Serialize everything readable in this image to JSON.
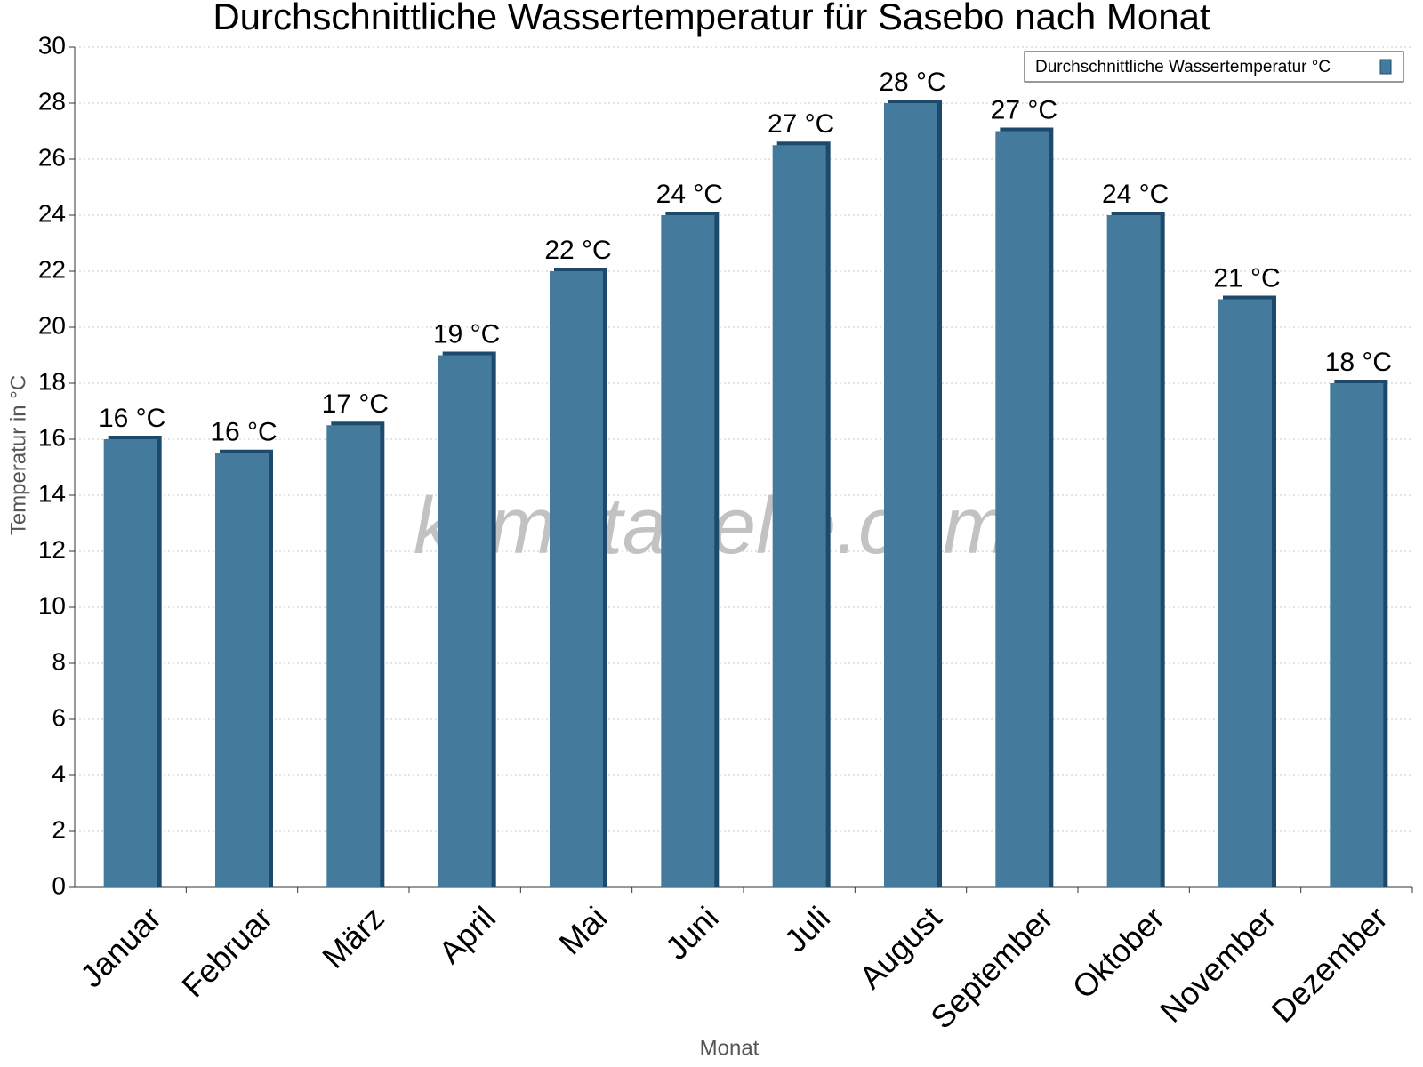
{
  "chart_data": {
    "type": "bar",
    "title": "Durchschnittliche Wassertemperatur für Sasebo nach Monat",
    "watermark": "klimatabelle.com",
    "x_label": "Monat",
    "y_label": "Temperatur in °C",
    "categories": [
      "Januar",
      "Februar",
      "März",
      "April",
      "Mai",
      "Juni",
      "Juli",
      "August",
      "September",
      "Oktober",
      "November",
      "Dezember"
    ],
    "series": [
      {
        "name": "Durchschnittliche Wassertemperatur °C",
        "color": "#447a9c",
        "values": [
          16,
          15.5,
          16.5,
          19,
          22,
          24,
          26.5,
          28,
          27,
          24,
          21,
          18
        ],
        "value_labels": [
          "16 °C",
          "16 °C",
          "17 °C",
          "19 °C",
          "22 °C",
          "24 °C",
          "27 °C",
          "28 °C",
          "27 °C",
          "24 °C",
          "21 °C",
          "18 °C"
        ]
      }
    ],
    "ylim": [
      0,
      30
    ],
    "yticks": [
      0,
      2,
      4,
      6,
      8,
      10,
      12,
      14,
      16,
      18,
      20,
      22,
      24,
      26,
      28,
      30
    ],
    "grid": true,
    "legend": "top-right"
  }
}
